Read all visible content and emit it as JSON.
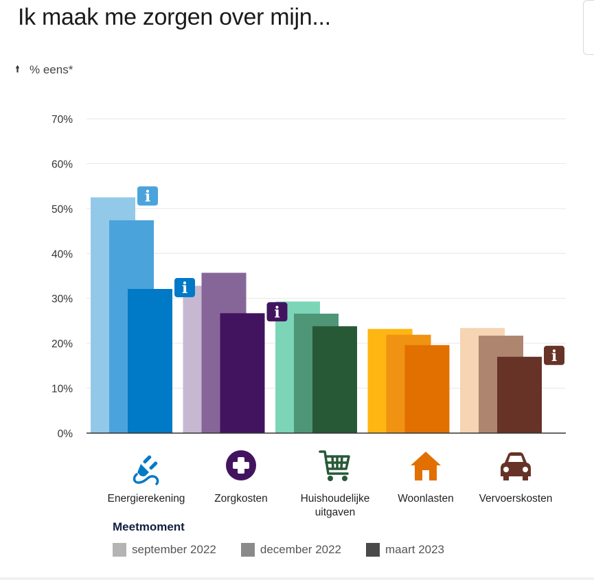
{
  "title": "Ik maak me zorgen over mijn...",
  "chart_data": {
    "type": "bar",
    "ylabel": "% eens*",
    "ylim": [
      0,
      70
    ],
    "yticks": [
      0,
      10,
      20,
      30,
      40,
      50,
      60,
      70
    ],
    "ytick_labels": [
      "0%",
      "10%",
      "20%",
      "30%",
      "40%",
      "50%",
      "60%",
      "70%"
    ],
    "grid": true,
    "categories": [
      "Energierekening",
      "Zorgkosten",
      "Huishoudelijke\nuitgaven",
      "Woonlasten",
      "Vervoerskosten"
    ],
    "category_icons": [
      "plug-icon",
      "plus-circle-icon",
      "shopping-cart-icon",
      "house-icon",
      "car-icon"
    ],
    "category_colors": [
      "#0079c7",
      "#42145f",
      "#275937",
      "#e17000",
      "#673327"
    ],
    "series": [
      {
        "name": "september 2022",
        "values": [
          52.5,
          32.8,
          29.3,
          23.2,
          23.4
        ],
        "colors": [
          "#93c9e8",
          "#c7b8d1",
          "#7dd5b8",
          "#ffb612",
          "#f6d5b4"
        ]
      },
      {
        "name": "december 2022",
        "values": [
          47.4,
          35.7,
          26.6,
          21.9,
          21.7
        ],
        "colors": [
          "#4aa3db",
          "#866699",
          "#4f9677",
          "#f09212",
          "#ae8670"
        ]
      },
      {
        "name": "maart 2023",
        "values": [
          32.1,
          26.7,
          23.8,
          19.6,
          17.0
        ],
        "colors": [
          "#0079c7",
          "#42145f",
          "#275937",
          "#e17000",
          "#673327"
        ]
      }
    ],
    "info_markers": [
      {
        "category": 0,
        "series": 0,
        "color": "#4aa3db",
        "label": "i"
      },
      {
        "category": 0,
        "series": 2,
        "color": "#0079c7",
        "label": "i"
      },
      {
        "category": 1,
        "series": 2,
        "color": "#42145f",
        "label": "i"
      },
      {
        "category": 4,
        "series": 2,
        "color": "#673327",
        "label": "i"
      }
    ],
    "legend": {
      "title": "Meetmoment",
      "position": "bottom",
      "items": [
        {
          "label": "september 2022",
          "color": "#b4b4b4"
        },
        {
          "label": "december 2022",
          "color": "#8a8a8a"
        },
        {
          "label": "maart 2023",
          "color": "#4a4a4a"
        }
      ]
    }
  }
}
